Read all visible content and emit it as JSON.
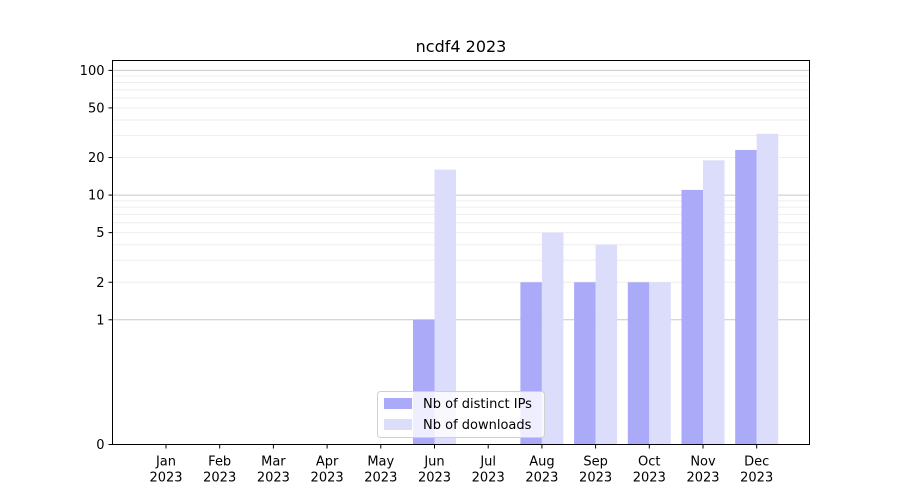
{
  "chart_data": {
    "type": "bar",
    "title": "ncdf4 2023",
    "xlabel": "",
    "ylabel": "",
    "yscale": "symlog",
    "ylim": [
      0,
      120
    ],
    "yticks": [
      0,
      1,
      2,
      5,
      10,
      20,
      50,
      100
    ],
    "ytick_labels": [
      "0",
      "1",
      "2",
      "5",
      "10",
      "20",
      "50",
      "100"
    ],
    "grid": "horizontal",
    "categories": [
      "Jan\n2023",
      "Feb\n2023",
      "Mar\n2023",
      "Apr\n2023",
      "May\n2023",
      "Jun\n2023",
      "Jul\n2023",
      "Aug\n2023",
      "Sep\n2023",
      "Oct\n2023",
      "Nov\n2023",
      "Dec\n2023"
    ],
    "series": [
      {
        "name": "Nb of distinct IPs",
        "color": "#aaaaf8",
        "values": [
          0,
          0,
          0,
          0,
          0,
          1,
          0,
          2,
          2,
          2,
          11,
          23
        ]
      },
      {
        "name": "Nb of downloads",
        "color": "#dcdcfb",
        "values": [
          0,
          0,
          0,
          0,
          0,
          16,
          0,
          5,
          4,
          2,
          19,
          31
        ]
      }
    ],
    "legend_position": "lower-center"
  }
}
